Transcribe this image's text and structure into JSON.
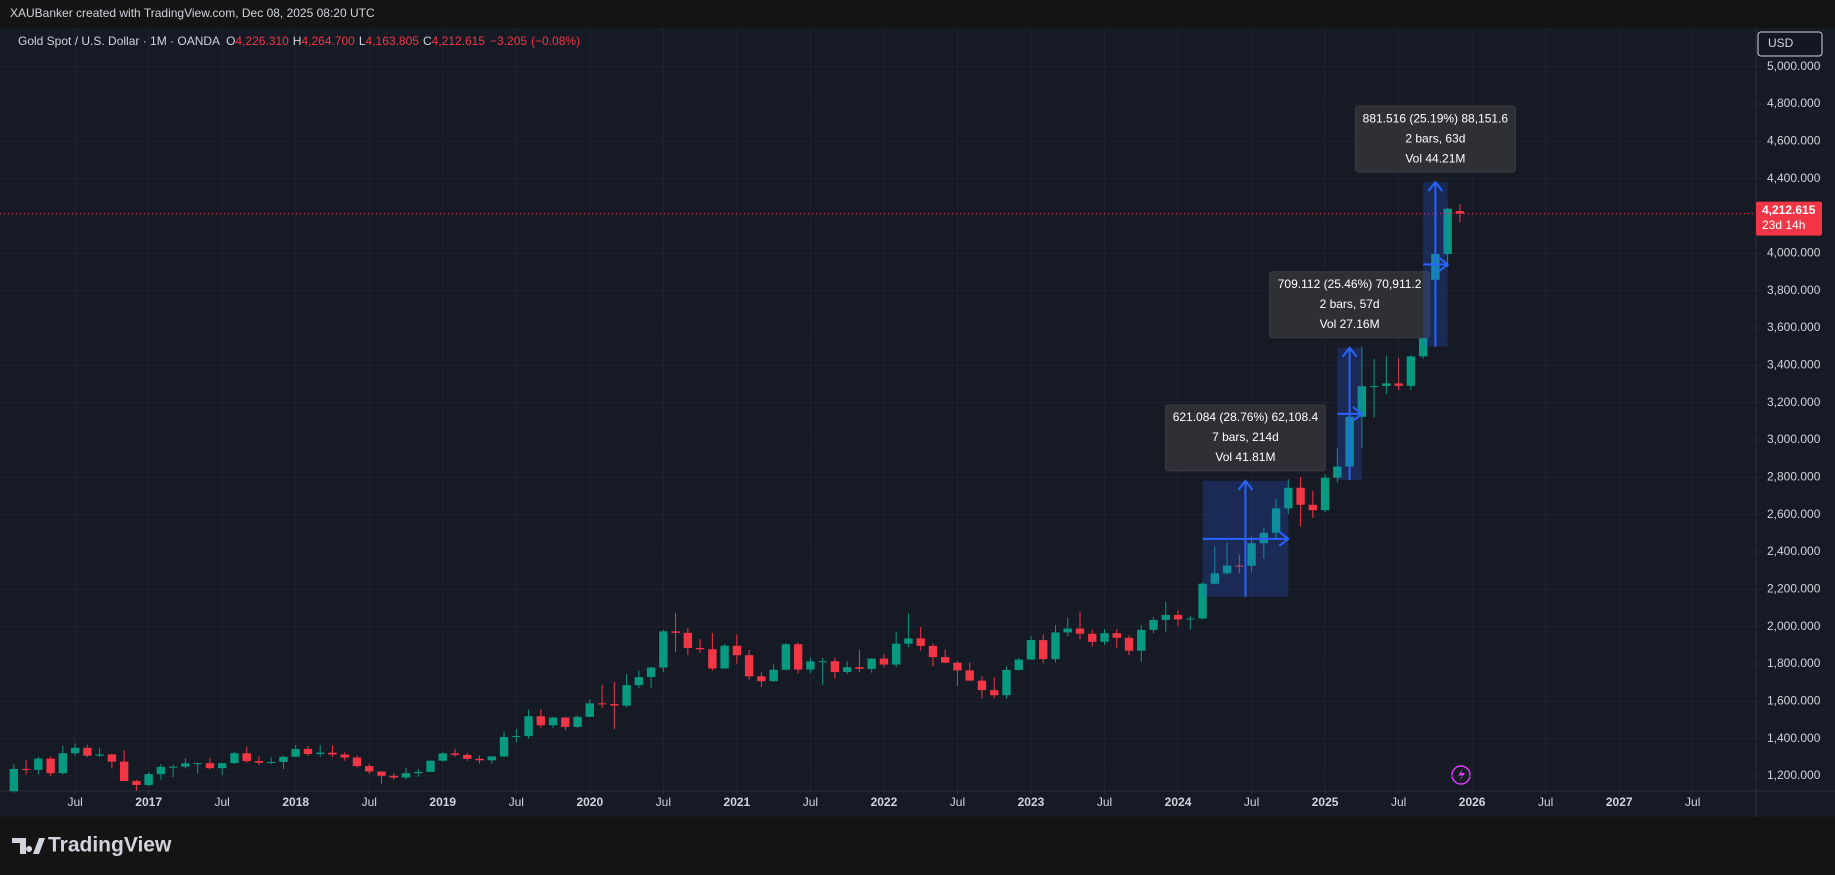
{
  "chart_data": {
    "type": "candlestick",
    "attribution": "XAUBanker created with TradingView.com, Dec 08, 2025 08:20 UTC",
    "title": "Gold Spot / U.S. Dollar · 1M · OANDA",
    "legend_ohlc": [
      {
        "key": "O",
        "value": 4226.31,
        "label": "4,226.310"
      },
      {
        "key": "H",
        "value": 4264.7,
        "label": "4,264.700"
      },
      {
        "key": "L",
        "value": 4163.805,
        "label": "4,163.805"
      },
      {
        "key": "C",
        "value": 4212.615,
        "label": "4,212.615"
      }
    ],
    "change": {
      "value": -3.205,
      "label": "−3.205"
    },
    "change_pct": {
      "value": -0.08,
      "label": "(−0.08%)"
    },
    "currency": "USD",
    "brand": "TradingView",
    "last_price_label": "4,212.615",
    "countdown": "23d 14h",
    "up_color": "#089981",
    "down_color": "#f23645",
    "grid": true,
    "x": [
      "2016-02",
      "2016-03",
      "2016-04",
      "2016-05",
      "2016-06",
      "2016-07",
      "2016-08",
      "2016-09",
      "2016-10",
      "2016-11",
      "2016-12",
      "2017-01",
      "2017-02",
      "2017-03",
      "2017-04",
      "2017-05",
      "2017-06",
      "2017-07",
      "2017-08",
      "2017-09",
      "2017-10",
      "2017-11",
      "2017-12",
      "2018-01",
      "2018-02",
      "2018-03",
      "2018-04",
      "2018-05",
      "2018-06",
      "2018-07",
      "2018-08",
      "2018-09",
      "2018-10",
      "2018-11",
      "2018-12",
      "2019-01",
      "2019-02",
      "2019-03",
      "2019-04",
      "2019-05",
      "2019-06",
      "2019-07",
      "2019-08",
      "2019-09",
      "2019-10",
      "2019-11",
      "2019-12",
      "2020-01",
      "2020-02",
      "2020-03",
      "2020-04",
      "2020-05",
      "2020-06",
      "2020-07",
      "2020-08",
      "2020-09",
      "2020-10",
      "2020-11",
      "2020-12",
      "2021-01",
      "2021-02",
      "2021-03",
      "2021-04",
      "2021-05",
      "2021-06",
      "2021-07",
      "2021-08",
      "2021-09",
      "2021-10",
      "2021-11",
      "2021-12",
      "2022-01",
      "2022-02",
      "2022-03",
      "2022-04",
      "2022-05",
      "2022-06",
      "2022-07",
      "2022-08",
      "2022-09",
      "2022-10",
      "2022-11",
      "2022-12",
      "2023-01",
      "2023-02",
      "2023-03",
      "2023-04",
      "2023-05",
      "2023-06",
      "2023-07",
      "2023-08",
      "2023-09",
      "2023-10",
      "2023-11",
      "2023-12",
      "2024-01",
      "2024-02",
      "2024-03",
      "2024-04",
      "2024-05",
      "2024-06",
      "2024-07",
      "2024-08",
      "2024-09",
      "2024-10",
      "2024-11",
      "2024-12",
      "2025-01",
      "2025-02",
      "2025-03",
      "2025-04",
      "2025-05",
      "2025-06",
      "2025-07",
      "2025-08",
      "2025-09",
      "2025-10",
      "2025-11",
      "2025-12"
    ],
    "open": [
      1118,
      1238,
      1233,
      1293,
      1215,
      1322,
      1351,
      1309,
      1316,
      1277,
      1173,
      1152,
      1210,
      1249,
      1250,
      1268,
      1269,
      1242,
      1269,
      1322,
      1280,
      1271,
      1275,
      1303,
      1345,
      1318,
      1325,
      1315,
      1299,
      1253,
      1224,
      1201,
      1192,
      1215,
      1222,
      1282,
      1321,
      1313,
      1292,
      1284,
      1305,
      1409,
      1414,
      1520,
      1472,
      1513,
      1463,
      1517,
      1589,
      1585,
      1577,
      1687,
      1730,
      1781,
      1975,
      1967,
      1886,
      1879,
      1776,
      1898,
      1847,
      1734,
      1708,
      1769,
      1906,
      1770,
      1814,
      1815,
      1757,
      1783,
      1774,
      1829,
      1797,
      1909,
      1937,
      1897,
      1837,
      1807,
      1766,
      1711,
      1660,
      1633,
      1768,
      1824,
      1928,
      1826,
      1969,
      1990,
      1962,
      1919,
      1965,
      1940,
      1871,
      1983,
      2036,
      2063,
      2039,
      2044,
      2230,
      2286,
      2327,
      2326,
      2447,
      2503,
      2634,
      2744,
      2653,
      2624,
      2798,
      2858,
      3124,
      3288,
      3289,
      3303,
      3290,
      3448,
      3858,
      3996,
      4226.31
    ],
    "high": [
      1263,
      1287,
      1303,
      1304,
      1362,
      1375,
      1367,
      1352,
      1316,
      1337,
      1180,
      1220,
      1264,
      1262,
      1296,
      1271,
      1296,
      1270,
      1331,
      1357,
      1306,
      1299,
      1309,
      1366,
      1361,
      1365,
      1365,
      1326,
      1309,
      1266,
      1225,
      1214,
      1243,
      1237,
      1284,
      1326,
      1346,
      1324,
      1310,
      1306,
      1439,
      1452,
      1555,
      1557,
      1517,
      1516,
      1525,
      1611,
      1689,
      1704,
      1747,
      1765,
      1785,
      1984,
      2075,
      1992,
      1933,
      1966,
      1907,
      1959,
      1875,
      1756,
      1798,
      1913,
      1916,
      1834,
      1832,
      1834,
      1814,
      1877,
      1831,
      1853,
      1974,
      2070,
      1998,
      1910,
      1879,
      1814,
      1808,
      1735,
      1730,
      1786,
      1833,
      1949,
      1959,
      2009,
      2048,
      2079,
      1983,
      1987,
      1987,
      1953,
      2009,
      2052,
      2135,
      2088,
      2057,
      2236,
      2431,
      2450,
      2387,
      2483,
      2531,
      2685,
      2790,
      2801,
      2726,
      2817,
      2956,
      3148,
      3500,
      3435,
      3452,
      3439,
      3453,
      3871,
      4381,
      4245,
      4264.7
    ],
    "low": [
      1110,
      1208,
      1208,
      1200,
      1208,
      1310,
      1302,
      1302,
      1241,
      1171,
      1122,
      1146,
      1180,
      1195,
      1241,
      1214,
      1236,
      1205,
      1266,
      1271,
      1260,
      1264,
      1236,
      1302,
      1307,
      1303,
      1302,
      1281,
      1246,
      1211,
      1160,
      1180,
      1182,
      1196,
      1221,
      1276,
      1302,
      1281,
      1266,
      1266,
      1300,
      1381,
      1400,
      1459,
      1458,
      1445,
      1456,
      1517,
      1563,
      1451,
      1568,
      1670,
      1671,
      1757,
      1863,
      1848,
      1860,
      1764,
      1775,
      1802,
      1717,
      1677,
      1705,
      1766,
      1750,
      1751,
      1688,
      1721,
      1746,
      1758,
      1753,
      1780,
      1782,
      1890,
      1872,
      1787,
      1805,
      1681,
      1709,
      1615,
      1617,
      1616,
      1765,
      1823,
      1804,
      1809,
      1949,
      1932,
      1893,
      1903,
      1885,
      1848,
      1810,
      1965,
      1973,
      2002,
      1984,
      2039,
      2228,
      2277,
      2286,
      2293,
      2364,
      2471,
      2604,
      2536,
      2583,
      2614,
      2772,
      2833,
      2957,
      3121,
      3247,
      3268,
      3268,
      3436,
      3850,
      3927,
      4163.805
    ],
    "close": [
      1238,
      1233,
      1293,
      1215,
      1322,
      1351,
      1309,
      1316,
      1277,
      1173,
      1152,
      1210,
      1249,
      1250,
      1268,
      1269,
      1242,
      1269,
      1322,
      1280,
      1271,
      1275,
      1303,
      1345,
      1318,
      1325,
      1315,
      1299,
      1253,
      1224,
      1201,
      1192,
      1215,
      1222,
      1282,
      1321,
      1313,
      1292,
      1284,
      1305,
      1409,
      1414,
      1520,
      1472,
      1513,
      1463,
      1517,
      1589,
      1585,
      1577,
      1687,
      1730,
      1781,
      1975,
      1967,
      1886,
      1879,
      1776,
      1898,
      1847,
      1734,
      1708,
      1769,
      1906,
      1770,
      1814,
      1815,
      1757,
      1783,
      1774,
      1829,
      1797,
      1909,
      1937,
      1897,
      1837,
      1807,
      1766,
      1711,
      1660,
      1633,
      1768,
      1824,
      1928,
      1826,
      1969,
      1990,
      1962,
      1919,
      1965,
      1940,
      1871,
      1983,
      2036,
      2063,
      2039,
      2044,
      2230,
      2286,
      2327,
      2326,
      2447,
      2503,
      2634,
      2744,
      2653,
      2624,
      2798,
      2858,
      3124,
      3288,
      3289,
      3303,
      3290,
      3448,
      3858,
      3996,
      4239,
      4212.615
    ],
    "xlim": [
      "2016-01",
      "2027-12"
    ],
    "xticks": [
      {
        "value": "2016-07",
        "label": "Jul"
      },
      {
        "value": "2017-01",
        "label": "2017"
      },
      {
        "value": "2017-07",
        "label": "Jul"
      },
      {
        "value": "2018-01",
        "label": "2018"
      },
      {
        "value": "2018-07",
        "label": "Jul"
      },
      {
        "value": "2019-01",
        "label": "2019"
      },
      {
        "value": "2019-07",
        "label": "Jul"
      },
      {
        "value": "2020-01",
        "label": "2020"
      },
      {
        "value": "2020-07",
        "label": "Jul"
      },
      {
        "value": "2021-01",
        "label": "2021"
      },
      {
        "value": "2021-07",
        "label": "Jul"
      },
      {
        "value": "2022-01",
        "label": "2022"
      },
      {
        "value": "2022-07",
        "label": "Jul"
      },
      {
        "value": "2023-01",
        "label": "2023"
      },
      {
        "value": "2023-07",
        "label": "Jul"
      },
      {
        "value": "2024-01",
        "label": "2024"
      },
      {
        "value": "2024-07",
        "label": "Jul"
      },
      {
        "value": "2025-01",
        "label": "2025"
      },
      {
        "value": "2025-07",
        "label": "Jul"
      },
      {
        "value": "2026-01",
        "label": "2026"
      },
      {
        "value": "2026-07",
        "label": "Jul"
      },
      {
        "value": "2027-01",
        "label": "2027"
      },
      {
        "value": "2027-07",
        "label": "Jul"
      }
    ],
    "ylim": [
      1125,
      5207
    ],
    "yticks": [
      {
        "value": 1200,
        "label": "1,200.000"
      },
      {
        "value": 1400,
        "label": "1,400.000"
      },
      {
        "value": 1600,
        "label": "1,600.000"
      },
      {
        "value": 1800,
        "label": "1,800.000"
      },
      {
        "value": 2000,
        "label": "2,000.000"
      },
      {
        "value": 2200,
        "label": "2,200.000"
      },
      {
        "value": 2400,
        "label": "2,400.000"
      },
      {
        "value": 2600,
        "label": "2,600.000"
      },
      {
        "value": 2800,
        "label": "2,800.000"
      },
      {
        "value": 3000,
        "label": "3,000.000"
      },
      {
        "value": 3200,
        "label": "3,200.000"
      },
      {
        "value": 3400,
        "label": "3,400.000"
      },
      {
        "value": 3600,
        "label": "3,600.000"
      },
      {
        "value": 3800,
        "label": "3,800.000"
      },
      {
        "value": 4000,
        "label": "4,000.000"
      },
      {
        "value": 4200,
        "label": "4,200.000"
      },
      {
        "value": 4400,
        "label": "4,400.000"
      },
      {
        "value": 4600,
        "label": "4,600.000"
      },
      {
        "value": 4800,
        "label": "4,800.000"
      },
      {
        "value": 5000,
        "label": "5,000.000"
      }
    ],
    "annotations": [
      {
        "x_range": [
          "2024-03",
          "2024-10"
        ],
        "y_range": [
          2160,
          2781.084
        ],
        "lines": [
          "621.084 (28.76%) 62,108.4",
          "7 bars, 214d",
          "Vol 41.81M"
        ]
      },
      {
        "x_range": [
          "2025-02",
          "2025-04"
        ],
        "y_range": [
          2785,
          3494.112
        ],
        "lines": [
          "709.112 (25.46%) 70,911.2",
          "2 bars, 57d",
          "Vol 27.16M"
        ]
      },
      {
        "x_range": [
          "2025-09",
          "2025-11"
        ],
        "y_range": [
          3500,
          4381.516
        ],
        "lines": [
          "881.516 (25.19%) 88,151.6",
          "2 bars, 63d",
          "Vol 44.21M"
        ]
      }
    ]
  }
}
